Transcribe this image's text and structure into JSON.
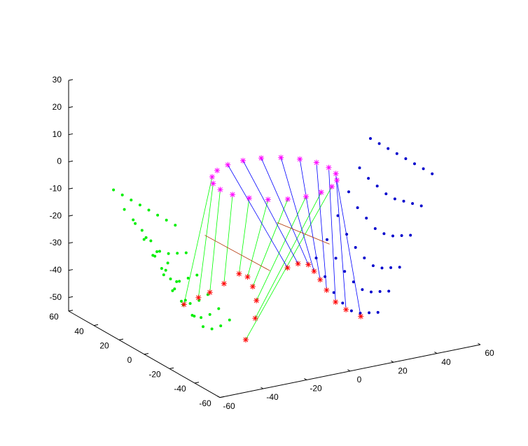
{
  "chart_data": {
    "type": "scatter3d",
    "xlim": [
      -60,
      60
    ],
    "ylim": [
      -60,
      60
    ],
    "zlim": [
      -55,
      30
    ],
    "xticks": [
      -60,
      -40,
      -20,
      0,
      20,
      40,
      60
    ],
    "yticks": [
      -60,
      -40,
      -20,
      0,
      20,
      40,
      60
    ],
    "zticks": [
      -50,
      -40,
      -30,
      -20,
      -10,
      0,
      10,
      20,
      30
    ],
    "segments": [
      {
        "color": "#00ff00",
        "x": [
          -20.2,
          -33
        ],
        "y": [
          14.7,
          15
        ],
        "z": [
          0,
          -45
        ]
      },
      {
        "color": "#00ff00",
        "x": [
          -23.8,
          -24
        ],
        "y": [
          7.7,
          19
        ],
        "z": [
          0,
          -45
        ]
      },
      {
        "color": "#00ff00",
        "x": [
          -25,
          -17
        ],
        "y": [
          0,
          22
        ],
        "z": [
          0,
          -45
        ]
      },
      {
        "color": "#00ff00",
        "x": [
          -23.8,
          -7
        ],
        "y": [
          -7.7,
          28
        ],
        "z": [
          0,
          -45
        ]
      },
      {
        "color": "#00ff00",
        "x": [
          -20.2,
          4
        ],
        "y": [
          -14.7,
          35
        ],
        "z": [
          0,
          -45
        ]
      },
      {
        "color": "#00ff00",
        "x": [
          -14.7,
          5
        ],
        "y": [
          -20.2,
          30
        ],
        "z": [
          0,
          -45
        ]
      },
      {
        "color": "#00ff00",
        "x": [
          -7.7,
          1
        ],
        "y": [
          -23.8,
          19
        ],
        "z": [
          0,
          -45
        ]
      },
      {
        "color": "#00ff00",
        "x": [
          0,
          -6
        ],
        "y": [
          -25,
          4
        ],
        "z": [
          0,
          -45
        ]
      },
      {
        "color": "#00ff00",
        "x": [
          7.7,
          -17
        ],
        "y": [
          -23.8,
          -14
        ],
        "z": [
          0,
          -45
        ]
      },
      {
        "color": "#00ff00",
        "x": [
          14.7,
          -33
        ],
        "y": [
          -20.2,
          -34
        ],
        "z": [
          0,
          -45
        ]
      },
      {
        "color": "#0000ff",
        "x": [
          -7.7,
          24
        ],
        "y": [
          23.8,
          31
        ],
        "z": [
          0,
          -45
        ]
      },
      {
        "color": "#0000ff",
        "x": [
          0,
          30
        ],
        "y": [
          25,
          33
        ],
        "z": [
          0,
          -45
        ]
      },
      {
        "color": "#0000ff",
        "x": [
          7.7,
          33
        ],
        "y": [
          23.8,
          30
        ],
        "z": [
          0,
          -45
        ]
      },
      {
        "color": "#0000ff",
        "x": [
          14.7,
          31
        ],
        "y": [
          20.2,
          22
        ],
        "z": [
          0,
          -45
        ]
      },
      {
        "color": "#0000ff",
        "x": [
          20.2,
          28
        ],
        "y": [
          14.7,
          12
        ],
        "z": [
          0,
          -45
        ]
      },
      {
        "color": "#0000ff",
        "x": [
          23.8,
          24
        ],
        "y": [
          7.7,
          0
        ],
        "z": [
          0,
          -45
        ]
      },
      {
        "color": "#0000ff",
        "x": [
          25,
          20
        ],
        "y": [
          0,
          -14
        ],
        "z": [
          0,
          -45
        ]
      },
      {
        "color": "#0000ff",
        "x": [
          23.8,
          19
        ],
        "y": [
          -7.7,
          -24
        ],
        "z": [
          0,
          -45
        ]
      },
      {
        "color": "#0000ff",
        "x": [
          20.2,
          20
        ],
        "y": [
          -14.7,
          -34
        ],
        "z": [
          0,
          -45
        ]
      },
      {
        "color": "#b03000",
        "x": [
          -17,
          -16
        ],
        "y": [
          26,
          -24
        ],
        "z": [
          -25,
          -25
        ]
      },
      {
        "color": "#b03000",
        "x": [
          7,
          12
        ],
        "y": [
          10,
          -23
        ],
        "z": [
          -20,
          -20
        ]
      }
    ],
    "series": [
      {
        "marker": "dot",
        "color": "#00ee00",
        "x": [
          -55,
          -55,
          -55,
          -55,
          -55,
          -55,
          -55,
          -55,
          -50,
          -50,
          -50,
          -50,
          -50,
          -50,
          -50,
          -50,
          -45,
          -45,
          -45,
          -45,
          -45,
          -45,
          -45,
          -45,
          -40,
          -40,
          -40,
          -40,
          -40,
          -40,
          -40,
          -40,
          -35,
          -35,
          -35,
          -35,
          -35,
          -35,
          -35,
          -35,
          -30,
          -30,
          -30,
          -30,
          -30,
          -30,
          -30,
          -30
        ],
        "y": [
          33,
          26,
          19,
          12,
          5,
          -2,
          -9,
          -16,
          33,
          26,
          19,
          12,
          5,
          -2,
          -9,
          -16,
          33,
          26,
          19,
          12,
          5,
          -2,
          -9,
          -16,
          33,
          26,
          19,
          12,
          5,
          -2,
          -9,
          -16,
          33,
          26,
          19,
          12,
          5,
          -2,
          -9,
          -16,
          33,
          26,
          19,
          12,
          5,
          -2,
          -9,
          -16
        ],
        "z": [
          -4,
          -4,
          -4,
          -4,
          -4,
          -4,
          -4,
          -4,
          -12,
          -14,
          -16,
          -18,
          -20,
          -19,
          -17,
          -15,
          -18,
          -22,
          -26,
          -29,
          -31,
          -30,
          -27,
          -24,
          -24,
          -29,
          -34,
          -38,
          -40,
          -39,
          -36,
          -32,
          -30,
          -35,
          -40,
          -44,
          -46,
          -45,
          -42,
          -38,
          -35,
          -40,
          -45,
          -49,
          -51,
          -50,
          -47,
          -43
        ]
      },
      {
        "marker": "dot",
        "color": "#0000cc",
        "x": [
          50,
          50,
          50,
          50,
          50,
          50,
          50,
          50,
          45,
          45,
          45,
          45,
          45,
          45,
          45,
          45,
          40,
          40,
          40,
          40,
          40,
          40,
          40,
          40,
          35,
          35,
          35,
          35,
          35,
          35,
          35,
          35,
          30,
          30,
          30,
          30,
          30,
          30,
          30,
          30,
          25,
          25,
          25,
          25,
          25,
          25,
          25,
          25
        ],
        "y": [
          10,
          3,
          -4,
          -11,
          -18,
          -25,
          -32,
          -39,
          10,
          3,
          -4,
          -11,
          -18,
          -25,
          -32,
          -39,
          10,
          3,
          -4,
          -11,
          -18,
          -25,
          -32,
          -39,
          10,
          3,
          -4,
          -11,
          -18,
          -25,
          -32,
          -39,
          10,
          3,
          -4,
          -11,
          -18,
          -25,
          -32,
          -39,
          10,
          3,
          -4,
          -11,
          -18,
          -25,
          -32,
          -39
        ],
        "z": [
          4,
          4,
          4,
          4,
          4,
          4,
          4,
          4,
          -6,
          -8,
          -9,
          -10,
          -10,
          -9,
          -8,
          -7,
          -14,
          -18,
          -20,
          -22,
          -22,
          -21,
          -19,
          -17,
          -22,
          -27,
          -30,
          -32,
          -33,
          -32,
          -30,
          -28,
          -30,
          -35,
          -38,
          -40,
          -41,
          -40,
          -38,
          -36,
          -36,
          -41,
          -45,
          -47,
          -48,
          -47,
          -45,
          -43
        ]
      },
      {
        "marker": "star",
        "color": "#ff00ff",
        "x": [
          25,
          23.8,
          20.2,
          14.7,
          7.7,
          0,
          -7.7,
          -14.7,
          -20.2,
          -23.8,
          -25,
          -23.8,
          -20.2,
          -14.7,
          -7.7,
          0,
          7.7,
          14.7,
          20.2,
          23.8
        ],
        "y": [
          0,
          7.7,
          14.7,
          20.2,
          23.8,
          25,
          23.8,
          20.2,
          14.7,
          7.7,
          0,
          -7.7,
          -14.7,
          -20.2,
          -23.8,
          -25,
          -23.8,
          -20.2,
          -14.7,
          -7.7
        ],
        "z": [
          0,
          0,
          0,
          0,
          0,
          0,
          0,
          0,
          0,
          0,
          0,
          0,
          0,
          0,
          0,
          0,
          0,
          0,
          0,
          0
        ]
      },
      {
        "marker": "star",
        "color": "#ff0000",
        "x": [
          -33,
          -24,
          -17,
          -7,
          4,
          5,
          1,
          -6,
          -17,
          -33
        ],
        "y": [
          15,
          19,
          22,
          28,
          35,
          30,
          19,
          4,
          -14,
          -34
        ],
        "z": [
          -45,
          -45,
          -45,
          -45,
          -45,
          -45,
          -45,
          -45,
          -45,
          -45
        ]
      },
      {
        "marker": "star",
        "color": "#ff0000",
        "x": [
          24,
          30,
          33,
          31,
          28,
          24,
          20,
          19,
          20
        ],
        "y": [
          31,
          33,
          30,
          22,
          12,
          0,
          -14,
          -24,
          -34
        ],
        "z": [
          -45,
          -45,
          -45,
          -45,
          -45,
          -45,
          -45,
          -45,
          -45
        ]
      }
    ]
  }
}
